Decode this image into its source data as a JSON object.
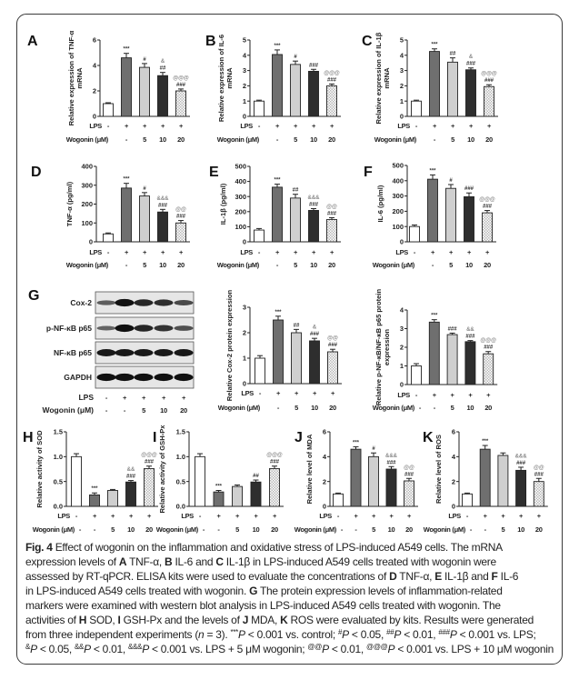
{
  "colors": {
    "control": "#ffffff",
    "lps": "#6f6f6f",
    "wog5": "#cfcfcf",
    "wog10": "#2e2e2e",
    "wog20_pattern": "#b8b8b8",
    "frame": "#3a3a3a"
  },
  "chart_data": [
    {
      "panel": "A",
      "type": "bar",
      "ylabel": [
        "Relative expression of TNF-α",
        "mRNA"
      ],
      "ylim": [
        0,
        6
      ],
      "yticks": [
        "0",
        "2",
        "4",
        "6"
      ],
      "values": [
        1.0,
        4.6,
        3.85,
        3.2,
        2.0
      ],
      "errors": [
        0.07,
        0.35,
        0.3,
        0.25,
        0.15
      ],
      "significance": [
        "",
        "***",
        "#",
        "&|##",
        "@@@|###"
      ],
      "lps_label": "LPS",
      "lps": [
        "-",
        "+",
        "+",
        "+",
        "+"
      ],
      "wogonin_label": "Wogonin (μM)",
      "wogonin": [
        "",
        "-",
        "5",
        "10",
        "20"
      ]
    },
    {
      "panel": "B",
      "type": "bar",
      "ylabel": [
        "Relative expression of IL-6",
        "mRNA"
      ],
      "ylim": [
        0,
        5
      ],
      "yticks": [
        "0",
        "1",
        "2",
        "3",
        "4",
        "5"
      ],
      "values": [
        1.0,
        4.05,
        3.4,
        2.95,
        2.0
      ],
      "errors": [
        0.06,
        0.3,
        0.22,
        0.13,
        0.12
      ],
      "significance": [
        "",
        "***",
        "#",
        "###",
        "@@@|###"
      ],
      "lps_label": "LPS",
      "lps": [
        "-",
        "+",
        "+",
        "+",
        "+"
      ],
      "wogonin_label": "Wogonin (μM)",
      "wogonin": [
        "",
        "-",
        "5",
        "10",
        "20"
      ]
    },
    {
      "panel": "C",
      "type": "bar",
      "ylabel": [
        "Relative expression of IL-1β",
        "mRNA"
      ],
      "ylim": [
        0,
        5
      ],
      "yticks": [
        "0",
        "1",
        "2",
        "3",
        "4",
        "5"
      ],
      "values": [
        1.0,
        4.25,
        3.55,
        3.05,
        1.95
      ],
      "errors": [
        0.06,
        0.17,
        0.28,
        0.12,
        0.12
      ],
      "significance": [
        "",
        "***",
        "##",
        "&|###",
        "@@@|###"
      ],
      "lps_label": "LPS",
      "lps": [
        "-",
        "+",
        "+",
        "+",
        "+"
      ],
      "wogonin_label": "Wogonin (μM)",
      "wogonin": [
        "",
        "-",
        "5",
        "10",
        "20"
      ]
    },
    {
      "panel": "D",
      "type": "bar",
      "ylabel": [
        "TNF-α (pg/ml)"
      ],
      "ylim": [
        0,
        400
      ],
      "yticks": [
        "0",
        "100",
        "200",
        "300",
        "400"
      ],
      "values": [
        42,
        285,
        243,
        158,
        100
      ],
      "errors": [
        5,
        25,
        18,
        14,
        13
      ],
      "significance": [
        "",
        "***",
        "#",
        "&&&|###",
        "@@|###"
      ],
      "lps_label": "LPS",
      "lps": [
        "-",
        "+",
        "+",
        "+",
        "+"
      ],
      "wogonin_label": "Wogonin (μM)",
      "wogonin": [
        "",
        "-",
        "5",
        "10",
        "20"
      ]
    },
    {
      "panel": "E",
      "type": "bar",
      "ylabel": [
        "IL-1β (pg/ml)"
      ],
      "ylim": [
        0,
        500
      ],
      "yticks": [
        "0",
        "100",
        "200",
        "300",
        "400",
        "500"
      ],
      "values": [
        78,
        362,
        290,
        208,
        148
      ],
      "errors": [
        10,
        20,
        25,
        12,
        12
      ],
      "significance": [
        "",
        "***",
        "##",
        "&&&|###",
        "@@|###"
      ],
      "lps_label": "LPS",
      "lps": [
        "-",
        "+",
        "+",
        "+",
        "+"
      ],
      "wogonin_label": "Wogonin (μM)",
      "wogonin": [
        "",
        "-",
        "5",
        "10",
        "20"
      ]
    },
    {
      "panel": "F",
      "type": "bar",
      "ylabel": [
        "IL-6 (pg/ml)"
      ],
      "ylim": [
        0,
        500
      ],
      "yticks": [
        "0",
        "100",
        "200",
        "300",
        "400",
        "500"
      ],
      "values": [
        100,
        410,
        350,
        295,
        190
      ],
      "errors": [
        10,
        28,
        25,
        25,
        15
      ],
      "significance": [
        "",
        "***",
        "#",
        "###",
        "@@@|###"
      ],
      "lps_label": "LPS",
      "lps": [
        "-",
        "+",
        "+",
        "+",
        "+"
      ],
      "wogonin_label": "Wogonin (μM)",
      "wogonin": [
        "",
        "-",
        "5",
        "10",
        "20"
      ]
    },
    {
      "panel": "",
      "type": "bar",
      "ylabel": [
        "Relative Cox-2 protein expression"
      ],
      "ylim": [
        0,
        3
      ],
      "yticks": [
        "0",
        "1",
        "2",
        "3"
      ],
      "values": [
        1.0,
        2.5,
        2.0,
        1.68,
        1.25
      ],
      "errors": [
        0.1,
        0.15,
        0.13,
        0.1,
        0.1
      ],
      "significance": [
        "",
        "***",
        "##",
        "&|###",
        "@@|###"
      ],
      "lps_label": "LPS",
      "lps": [
        "-",
        "+",
        "+",
        "+",
        "+"
      ],
      "wogonin_label": "Wogonin (μM)",
      "wogonin": [
        "",
        "-",
        "5",
        "10",
        "20"
      ]
    },
    {
      "panel": "",
      "type": "bar",
      "ylabel": [
        "Relative p-NF-κB/NF-κB p65 protein",
        "expression"
      ],
      "ylim": [
        0,
        4
      ],
      "yticks": [
        "0",
        "1",
        "2",
        "3",
        "4"
      ],
      "values": [
        1.0,
        3.35,
        2.68,
        2.3,
        1.65
      ],
      "errors": [
        0.12,
        0.13,
        0.08,
        0.06,
        0.12
      ],
      "significance": [
        "",
        "***",
        "###",
        "&&|###",
        "@@@|###"
      ],
      "lps_label": "LPS",
      "lps": [
        "-",
        "+",
        "+",
        "+",
        "+"
      ],
      "wogonin_label": "Wogonin (μM)",
      "wogonin": [
        "-",
        "-",
        "5",
        "10",
        "20"
      ]
    },
    {
      "panel": "H",
      "type": "bar",
      "ylabel": [
        "Relative activity of SOD"
      ],
      "ylim": [
        0,
        1.5
      ],
      "yticks": [
        "0.0",
        "0.5",
        "1.0",
        "1.5"
      ],
      "values": [
        1.0,
        0.23,
        0.32,
        0.49,
        0.76
      ],
      "errors": [
        0.06,
        0.04,
        0.02,
        0.03,
        0.05
      ],
      "significance": [
        "",
        "***",
        "",
        "&&|###",
        "@@@|###"
      ],
      "lps_label": "LPS",
      "lps": [
        "-",
        "+",
        "+",
        "+",
        "+"
      ],
      "wogonin_label": "Wogonin (μM)",
      "wogonin": [
        "-",
        "-",
        "5",
        "10",
        "20"
      ]
    },
    {
      "panel": "I",
      "type": "bar",
      "ylabel": [
        "Relative activity of GSH-Px"
      ],
      "ylim": [
        0,
        1.5
      ],
      "yticks": [
        "0.0",
        "0.5",
        "1.0",
        "1.5"
      ],
      "values": [
        1.0,
        0.29,
        0.4,
        0.49,
        0.76
      ],
      "errors": [
        0.06,
        0.03,
        0.03,
        0.04,
        0.05
      ],
      "significance": [
        "",
        "***",
        "",
        "##",
        "@@@|###"
      ],
      "lps_label": "LPS",
      "lps": [
        "-",
        "+",
        "+",
        "+",
        "+"
      ],
      "wogonin_label": "Wogonin (μM)",
      "wogonin": [
        "-",
        "-",
        "5",
        "10",
        "20"
      ]
    },
    {
      "panel": "J",
      "type": "bar",
      "ylabel": [
        "Relative level of MDA"
      ],
      "ylim": [
        0,
        6
      ],
      "yticks": [
        "0",
        "2",
        "4",
        "6"
      ],
      "values": [
        1.0,
        4.6,
        4.0,
        3.0,
        2.05
      ],
      "errors": [
        0.07,
        0.2,
        0.3,
        0.2,
        0.2
      ],
      "significance": [
        "",
        "***",
        "#",
        "&&&|###",
        "@@|###"
      ],
      "lps_label": "LPS",
      "lps": [
        "-",
        "+",
        "+",
        "+",
        "+"
      ],
      "wogonin_label": "Wogonin (μM)",
      "wogonin": [
        "-",
        "-",
        "5",
        "10",
        "20"
      ]
    },
    {
      "panel": "K",
      "type": "bar",
      "ylabel": [
        "Relative level of ROS"
      ],
      "ylim": [
        0,
        6
      ],
      "yticks": [
        "0",
        "2",
        "4",
        "6"
      ],
      "values": [
        1.0,
        4.6,
        4.1,
        2.9,
        2.0
      ],
      "errors": [
        0.07,
        0.3,
        0.2,
        0.25,
        0.25
      ],
      "significance": [
        "",
        "***",
        "",
        "&&&|###",
        "@@|###"
      ],
      "lps_label": "LPS",
      "lps": [
        "-",
        "+",
        "+",
        "+",
        "+"
      ],
      "wogonin_label": "Wogonin (μM)",
      "wogonin": [
        "-",
        "-",
        "5",
        "10",
        "20"
      ]
    }
  ],
  "blot": {
    "panel": "G",
    "rows": [
      {
        "label": "Cox-2",
        "band_intensity": [
          0.45,
          1.0,
          0.85,
          0.8,
          0.6
        ]
      },
      {
        "label": "p-NF-κB p65",
        "band_intensity": [
          0.4,
          1.0,
          0.85,
          0.75,
          0.55
        ]
      },
      {
        "label": "NF-κB p65",
        "band_intensity": [
          0.95,
          0.95,
          0.95,
          0.95,
          0.95
        ]
      },
      {
        "label": "GAPDH",
        "band_intensity": [
          1.0,
          1.0,
          1.0,
          1.0,
          1.0
        ]
      }
    ],
    "lps_label": "LPS",
    "lps": [
      "-",
      "+",
      "+",
      "+",
      "+"
    ],
    "wogonin_label": "Wogonin (μM)",
    "wogonin": [
      "-",
      "-",
      "5",
      "10",
      "20"
    ]
  },
  "caption": [
    [
      [
        "Fig. 4",
        "b"
      ],
      [
        " Effect of wogonin on the inflammation and oxidative stress of LPS-induced A549 cells. The mRNA",
        ""
      ]
    ],
    [
      [
        "expression levels of ",
        ""
      ],
      [
        "A",
        "b"
      ],
      [
        " TNF-α, ",
        ""
      ],
      [
        "B",
        "b"
      ],
      [
        " IL-6 and ",
        ""
      ],
      [
        "C",
        "b"
      ],
      [
        " IL-1β in LPS-induced A549 cells treated with wogonin were",
        ""
      ]
    ],
    [
      [
        "assessed by RT-qPCR. ELISA kits were used to evaluate the concentrations of ",
        ""
      ],
      [
        "D",
        "b"
      ],
      [
        " TNF-α, ",
        ""
      ],
      [
        "E",
        "b"
      ],
      [
        " IL-1β and ",
        ""
      ],
      [
        "F",
        "b"
      ],
      [
        " IL-6",
        ""
      ]
    ],
    [
      [
        "in LPS-induced A549 cells treated with wogonin. ",
        ""
      ],
      [
        "G",
        "b"
      ],
      [
        " The protein expression levels of inflammation-related",
        ""
      ]
    ],
    [
      [
        "markers were examined with western blot analysis in LPS-induced A549 cells treated with wogonin. The",
        ""
      ]
    ],
    [
      [
        "activities of ",
        ""
      ],
      [
        "H",
        "b"
      ],
      [
        " SOD, ",
        ""
      ],
      [
        "I",
        "b"
      ],
      [
        " GSH-Px and the levels of ",
        ""
      ],
      [
        "J",
        "b"
      ],
      [
        " MDA, ",
        ""
      ],
      [
        "K",
        "b"
      ],
      [
        " ROS were evaluated by kits. Results were generated",
        ""
      ]
    ],
    [
      [
        "from three independent experiments (",
        ""
      ],
      [
        "n",
        "i"
      ],
      [
        " = 3). ",
        ""
      ],
      [
        "***",
        "sup"
      ],
      [
        "P",
        "i"
      ],
      [
        " < 0.001 vs. control; ",
        ""
      ],
      [
        "#",
        "sup"
      ],
      [
        "P",
        "i"
      ],
      [
        " < 0.05, ",
        ""
      ],
      [
        "##",
        "sup"
      ],
      [
        "P",
        "i"
      ],
      [
        " < 0.01, ",
        ""
      ],
      [
        "###",
        "sup"
      ],
      [
        "P",
        "i"
      ],
      [
        " < 0.001 vs. LPS;",
        ""
      ]
    ],
    [
      [
        "&",
        "sup"
      ],
      [
        "P",
        "i"
      ],
      [
        " < 0.05, ",
        ""
      ],
      [
        "&&",
        "sup"
      ],
      [
        "P",
        "i"
      ],
      [
        " < 0.01, ",
        ""
      ],
      [
        "&&&",
        "sup"
      ],
      [
        "P",
        "i"
      ],
      [
        " < 0.001 vs. LPS + 5 μM wogonin; ",
        ""
      ],
      [
        "@@",
        "sup"
      ],
      [
        "P",
        "i"
      ],
      [
        " < 0.01, ",
        ""
      ],
      [
        "@@@",
        "sup"
      ],
      [
        "P",
        "i"
      ],
      [
        " < 0.001 vs. LPS + 10 μM wogonin",
        ""
      ]
    ]
  ]
}
